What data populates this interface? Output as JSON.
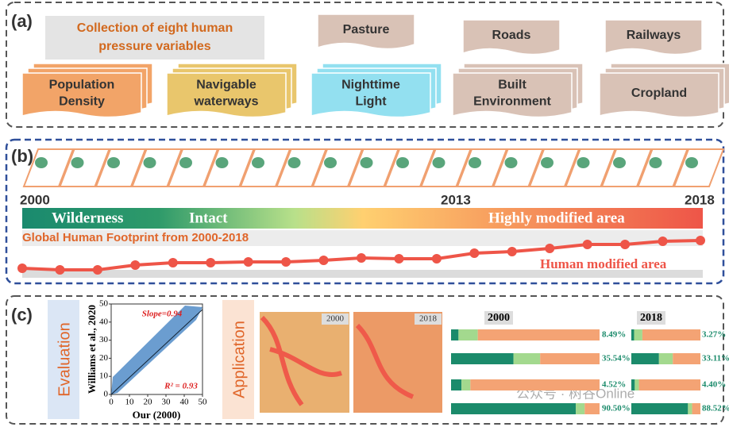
{
  "panel_a": {
    "label": "(a)",
    "title_lines": [
      "Collection of eight human",
      "pressure variables"
    ],
    "variables": [
      {
        "lines": [
          "Pasture"
        ],
        "color": "#d9c2b6"
      },
      {
        "lines": [
          "Roads"
        ],
        "color": "#d9c2b6"
      },
      {
        "lines": [
          "Railways"
        ],
        "color": "#d9c2b6"
      },
      {
        "lines": [
          "Population",
          "Density"
        ],
        "color": "#f2a468"
      },
      {
        "lines": [
          "Navigable",
          "waterways"
        ],
        "color": "#e9c66c"
      },
      {
        "lines": [
          "Nighttime",
          "Light"
        ],
        "color": "#93e0f0"
      },
      {
        "lines": [
          "Built",
          "Environment"
        ],
        "color": "#d9c2b6"
      },
      {
        "lines": [
          "Cropland"
        ],
        "color": "#d9c2b6"
      }
    ]
  },
  "panel_b": {
    "label": "(b)",
    "years": [
      "2000",
      "2013",
      "2018"
    ],
    "gradient_labels": [
      "Wilderness",
      "Intact",
      "Highly modified area"
    ],
    "title": "Global Human Footprint from 2000-2018",
    "line_label": "Human modified area",
    "line_values": [
      12,
      10,
      10,
      16,
      19,
      19,
      20,
      20,
      22,
      25,
      24,
      24,
      31,
      33,
      37,
      42,
      42,
      46,
      47
    ],
    "ylim": [
      0,
      50
    ],
    "line_color": "#ee5548"
  },
  "panel_c": {
    "label": "(c)",
    "evaluation": "Evaluation",
    "application": "Application",
    "scatter": {
      "xlabel": "Our (2000)",
      "ylabel": "Williams et al., 2020",
      "slope_label": "Slope=0.94",
      "r2_label": "R² = 0.93",
      "xlim": [
        0,
        50
      ],
      "ylim": [
        0,
        50
      ],
      "xticks": [
        0,
        10,
        20,
        30,
        40,
        50
      ],
      "yticks": [
        0,
        10,
        20,
        30,
        40,
        50
      ]
    },
    "map_years": [
      "2000",
      "2018"
    ],
    "bars": [
      {
        "year": "2000",
        "rows": [
          [
            5,
            13,
            82
          ],
          [
            42,
            18,
            40
          ],
          [
            7,
            6,
            87
          ],
          [
            84,
            6,
            10
          ]
        ],
        "labels": [
          "8.49%",
          "35.54%",
          "4.52%",
          "90.50%"
        ]
      },
      {
        "year": "2018",
        "rows": [
          [
            4,
            12,
            84
          ],
          [
            40,
            20,
            40
          ],
          [
            5,
            6,
            89
          ],
          [
            82,
            6,
            12
          ]
        ],
        "labels": [
          "3.27%",
          "33.11%",
          "4.40%",
          "88.52%"
        ]
      }
    ],
    "bar_colors": [
      "#1b8b6b",
      "#a3d98e",
      "#f4a374"
    ]
  },
  "watermark": "公众号 · 树谷Online"
}
